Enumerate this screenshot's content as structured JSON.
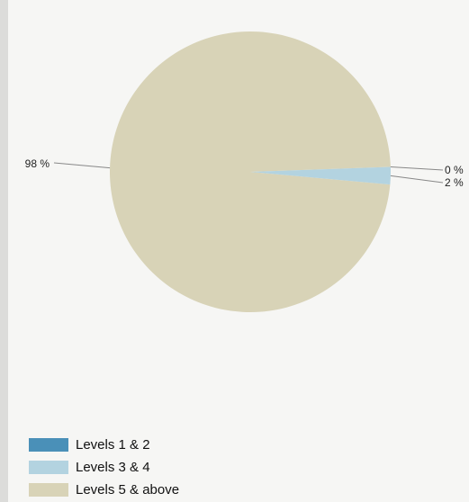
{
  "chart_data": {
    "type": "pie",
    "title": "",
    "categories": [
      "Levels 1 & 2",
      "Levels 3 & 4",
      "Levels 5 & above"
    ],
    "values": [
      0,
      2,
      98
    ],
    "value_labels": [
      "0 %",
      "2 %",
      "98 %"
    ],
    "colors": [
      "#4a90b8",
      "#b3d3e0",
      "#d8d3b7"
    ],
    "legend_position": "bottom-left"
  }
}
